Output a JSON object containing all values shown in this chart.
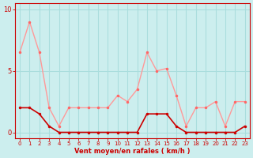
{
  "hours": [
    0,
    1,
    2,
    3,
    4,
    5,
    6,
    7,
    8,
    9,
    10,
    11,
    12,
    13,
    14,
    15,
    16,
    17,
    18,
    19,
    20,
    21,
    22,
    23
  ],
  "rafales": [
    6.5,
    9.0,
    6.5,
    2.0,
    0.5,
    2.0,
    2.0,
    2.0,
    2.0,
    2.0,
    3.0,
    2.5,
    3.5,
    6.5,
    5.0,
    5.2,
    3.0,
    0.5,
    2.0,
    2.0,
    2.5,
    0.5,
    2.5,
    2.5
  ],
  "vent_moyen": [
    2.0,
    2.0,
    1.5,
    0.5,
    0.0,
    0.0,
    0.0,
    0.0,
    0.0,
    0.0,
    0.0,
    0.0,
    0.0,
    1.5,
    1.5,
    1.5,
    0.5,
    0.0,
    0.0,
    0.0,
    0.0,
    0.0,
    0.0,
    0.5
  ],
  "line_color_rafales": "#FF9999",
  "line_color_vent": "#CC0000",
  "marker_color_rafales": "#FF6666",
  "marker_color_vent": "#CC0000",
  "bg_color": "#CCEEEE",
  "grid_color": "#AADDDD",
  "xlabel": "Vent moyen/en rafales ( km/h )",
  "xlabel_color": "#CC0000",
  "ylim": [
    -0.5,
    10.5
  ],
  "yticks": [
    0,
    5,
    10
  ],
  "xlim": [
    -0.5,
    23.5
  ],
  "figsize": [
    3.2,
    2.0
  ],
  "dpi": 100
}
